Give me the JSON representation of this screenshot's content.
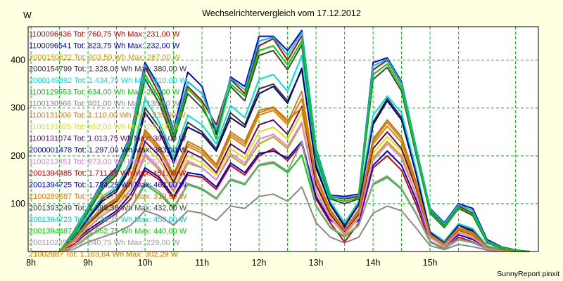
{
  "chart_data": {
    "type": "line",
    "title": "Wechselrichtervergleich vom 17.12.2012",
    "ylabel": "W",
    "xlabel": "",
    "credit": "SunnyReport pinxit",
    "xlim": [
      7.95,
      16.9
    ],
    "ylim": [
      0,
      470
    ],
    "yticks": [
      100,
      200,
      300,
      400
    ],
    "xticks": [
      8,
      9,
      10,
      11,
      12,
      13,
      14,
      15
    ],
    "xtick_labels": [
      "8h",
      "9h",
      "10h",
      "11h",
      "12h",
      "13h",
      "14h",
      "15h"
    ],
    "grid": true,
    "legend_position": "top-left, overlaid on plot",
    "x": [
      8.0,
      8.25,
      8.5,
      8.75,
      9.0,
      9.25,
      9.5,
      9.75,
      10.0,
      10.25,
      10.5,
      10.75,
      11.0,
      11.25,
      11.5,
      11.75,
      12.0,
      12.25,
      12.5,
      12.75,
      13.0,
      13.25,
      13.5,
      13.75,
      14.0,
      14.25,
      14.5,
      14.75,
      15.0,
      15.25,
      15.5,
      15.75,
      16.0,
      16.25,
      16.5,
      16.75
    ],
    "series": [
      {
        "name": "1100096436 Tot: 760,75 Wh Max: 231,00 W",
        "color": "#cc0000",
        "values": [
          0,
          0,
          0,
          15,
          40,
          60,
          80,
          110,
          170,
          150,
          110,
          160,
          155,
          130,
          180,
          160,
          200,
          215,
          190,
          225,
          110,
          60,
          20,
          60,
          175,
          200,
          170,
          100,
          20,
          5,
          30,
          20,
          5,
          2,
          0,
          0
        ]
      },
      {
        "name": "1100096541 Tot: 823,75 Wh Max: 232,00 W",
        "color": "#0000cc",
        "values": [
          0,
          0,
          0,
          20,
          45,
          65,
          85,
          120,
          175,
          155,
          115,
          165,
          160,
          135,
          185,
          165,
          205,
          210,
          195,
          230,
          115,
          65,
          50,
          65,
          180,
          210,
          180,
          110,
          30,
          10,
          35,
          25,
          8,
          3,
          0,
          0
        ]
      },
      {
        "name": "2000150622 Tot: 903,50 Wh Max: 267,00 W",
        "color": "#c8a000",
        "values": [
          0,
          0,
          0,
          20,
          50,
          75,
          95,
          130,
          200,
          170,
          125,
          185,
          175,
          150,
          200,
          180,
          225,
          240,
          215,
          267,
          125,
          70,
          35,
          70,
          195,
          230,
          200,
          120,
          30,
          10,
          40,
          28,
          8,
          3,
          0,
          0
        ]
      },
      {
        "name": "2000154799 Tot: 1.328,00 Wh Max: 380,00 W",
        "color": "#333333",
        "values": [
          0,
          0,
          0,
          30,
          70,
          110,
          130,
          180,
          300,
          260,
          190,
          270,
          250,
          215,
          290,
          265,
          340,
          350,
          315,
          380,
          180,
          100,
          55,
          100,
          270,
          320,
          280,
          170,
          40,
          20,
          55,
          45,
          10,
          5,
          0,
          0
        ]
      },
      {
        "name": "2000149892 Tot: 1.434,75 Wh Max: 410,00 W",
        "color": "#00e0e0",
        "values": [
          0,
          0,
          0,
          32,
          75,
          115,
          135,
          190,
          320,
          270,
          200,
          285,
          265,
          225,
          305,
          280,
          360,
          370,
          335,
          410,
          190,
          105,
          60,
          105,
          285,
          325,
          290,
          175,
          42,
          22,
          58,
          48,
          12,
          5,
          0,
          0
        ]
      },
      {
        "name": "1100129553 Tot: 634,00 Wh Max: 202,00 W",
        "color": "#00cc00",
        "values": [
          0,
          0,
          0,
          10,
          30,
          50,
          65,
          90,
          140,
          120,
          90,
          140,
          130,
          110,
          150,
          140,
          180,
          185,
          165,
          202,
          95,
          50,
          30,
          55,
          140,
          155,
          130,
          80,
          20,
          6,
          25,
          18,
          5,
          2,
          0,
          0
        ]
      },
      {
        "name": "1100130966 Tot: 401,00 Wh Max: 135,00 W",
        "color": "#888888",
        "values": [
          0,
          0,
          0,
          5,
          20,
          30,
          40,
          55,
          85,
          75,
          55,
          85,
          80,
          65,
          95,
          90,
          115,
          120,
          105,
          135,
          60,
          30,
          18,
          30,
          80,
          95,
          85,
          50,
          12,
          4,
          15,
          10,
          3,
          1,
          0,
          0
        ]
      },
      {
        "name": "1100131006 Tot: 1.110,00 Wh Max: 335,00 W",
        "color": "#d08020",
        "values": [
          0,
          0,
          0,
          25,
          60,
          90,
          110,
          150,
          250,
          215,
          160,
          225,
          210,
          180,
          245,
          225,
          290,
          300,
          270,
          335,
          155,
          85,
          45,
          85,
          230,
          270,
          235,
          145,
          35,
          15,
          48,
          38,
          9,
          4,
          0,
          0
        ]
      },
      {
        "name": "1100131025 Tot: 952,00 Wh Max: 290,00 W",
        "color": "#e0e000",
        "values": [
          0,
          0,
          0,
          22,
          55,
          80,
          100,
          140,
          220,
          190,
          140,
          200,
          185,
          160,
          215,
          195,
          250,
          260,
          235,
          290,
          135,
          75,
          40,
          75,
          205,
          240,
          210,
          130,
          32,
          12,
          42,
          32,
          8,
          3,
          0,
          0
        ]
      },
      {
        "name": "1100131074 Tot: 1.013,75 Wh Max: 303,00 W",
        "color": "#660066",
        "values": [
          0,
          0,
          0,
          24,
          58,
          85,
          105,
          145,
          230,
          200,
          145,
          210,
          195,
          165,
          225,
          205,
          265,
          275,
          245,
          303,
          140,
          78,
          42,
          78,
          215,
          250,
          215,
          135,
          33,
          13,
          45,
          35,
          8,
          3,
          0,
          0
        ]
      },
      {
        "name": "2000001478 Tot: 1.297,00 Wh Max: 383,00 W",
        "color": "#000080",
        "values": [
          0,
          0,
          0,
          28,
          68,
          105,
          125,
          175,
          290,
          250,
          185,
          260,
          245,
          210,
          280,
          260,
          330,
          345,
          310,
          383,
          175,
          98,
          52,
          98,
          265,
          315,
          275,
          165,
          40,
          18,
          55,
          42,
          10,
          4,
          0,
          0
        ]
      },
      {
        "name": "1100213451 Tot: 873,00 Wh Max: 270,00 W",
        "color": "#e080e0",
        "values": [
          0,
          0,
          0,
          20,
          50,
          75,
          95,
          130,
          205,
          175,
          130,
          190,
          175,
          150,
          205,
          185,
          235,
          245,
          220,
          270,
          125,
          70,
          38,
          70,
          190,
          225,
          195,
          120,
          30,
          11,
          40,
          30,
          7,
          3,
          0,
          0
        ]
      },
      {
        "name": "2001394485 Tot: 1.711,85 Wh Max: 451,00 W",
        "color": "#c00000",
        "values": [
          0,
          0,
          0,
          40,
          90,
          140,
          170,
          240,
          385,
          330,
          245,
          345,
          315,
          265,
          360,
          330,
          430,
          445,
          400,
          451,
          210,
          115,
          110,
          115,
          380,
          400,
          350,
          215,
          85,
          55,
          95,
          80,
          20,
          8,
          2,
          0
        ]
      },
      {
        "name": "2001394725 Tot: 1.784,25 Wh Max: 462,00 W",
        "color": "#0000e0",
        "values": [
          0,
          0,
          0,
          42,
          92,
          145,
          175,
          245,
          395,
          345,
          255,
          375,
          345,
          245,
          365,
          345,
          450,
          450,
          420,
          462,
          215,
          118,
          115,
          120,
          395,
          405,
          355,
          220,
          90,
          60,
          100,
          90,
          25,
          10,
          3,
          0
        ]
      },
      {
        "name": "2100289887 Tot: 1.092,75 Wh Max: 319,00 W",
        "color": "#e08000",
        "values": [
          0,
          0,
          0,
          24,
          60,
          90,
          108,
          148,
          245,
          210,
          155,
          220,
          205,
          175,
          240,
          220,
          285,
          295,
          265,
          319,
          150,
          82,
          44,
          82,
          225,
          262,
          228,
          140,
          34,
          14,
          46,
          36,
          9,
          4,
          0,
          0
        ]
      },
      {
        "name": "2001393249 Tot: 1.598,38 Wh Max: 432,00 W",
        "color": "#404040",
        "values": [
          0,
          0,
          0,
          36,
          82,
          130,
          160,
          225,
          360,
          310,
          230,
          330,
          300,
          250,
          345,
          315,
          410,
          420,
          380,
          432,
          200,
          110,
          100,
          110,
          360,
          385,
          335,
          205,
          80,
          50,
          90,
          75,
          18,
          7,
          1,
          0
        ]
      },
      {
        "name": "2001394723 Tot: 1.736,75 Wh Max: 458,00 W",
        "color": "#00c8c8",
        "values": [
          0,
          0,
          0,
          41,
          91,
          142,
          172,
          242,
          390,
          340,
          250,
          355,
          330,
          255,
          362,
          338,
          440,
          448,
          410,
          458,
          212,
          116,
          112,
          118,
          388,
          402,
          352,
          218,
          88,
          58,
          98,
          85,
          22,
          9,
          2,
          0
        ]
      },
      {
        "name": "2001394487 Tot: 1.652,75 Wh Max: 440,00 W",
        "color": "#00d000",
        "values": [
          0,
          0,
          0,
          38,
          86,
          135,
          165,
          232,
          370,
          320,
          238,
          340,
          310,
          235,
          350,
          325,
          420,
          430,
          390,
          440,
          205,
          112,
          105,
          112,
          370,
          392,
          342,
          210,
          82,
          52,
          92,
          78,
          20,
          8,
          2,
          0
        ]
      },
      {
        "name": "2001102357 Tot: 640,75 Wh Max: 229,00 W",
        "color": "#999999",
        "values": [
          0,
          0,
          0,
          10,
          32,
          50,
          65,
          90,
          145,
          125,
          92,
          142,
          132,
          112,
          152,
          142,
          182,
          188,
          168,
          229,
          97,
          52,
          32,
          56,
          142,
          158,
          132,
          82,
          22,
          7,
          26,
          19,
          5,
          2,
          0,
          0
        ]
      },
      {
        "name": "2100288? Tot: 1.163,64 Wh Max: 302,29 W",
        "color": "#c87800",
        "values": [
          0,
          0,
          0,
          26,
          62,
          92,
          112,
          155,
          255,
          220,
          162,
          230,
          215,
          182,
          250,
          230,
          295,
          302,
          275,
          300,
          158,
          88,
          46,
          88,
          235,
          275,
          240,
          148,
          36,
          16,
          50,
          40,
          10,
          4,
          0,
          0
        ]
      }
    ]
  }
}
